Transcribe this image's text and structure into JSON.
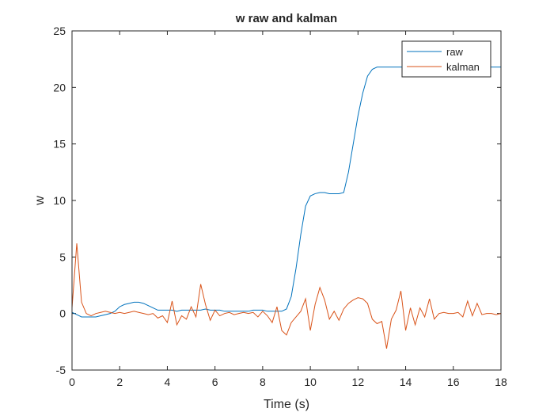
{
  "chart_data": {
    "type": "line",
    "title": "w raw and kalman",
    "xlabel": "Time (s)",
    "ylabel": "w",
    "x": [
      0,
      0.2,
      0.4,
      0.6,
      0.8,
      1,
      1.2,
      1.4,
      1.6,
      1.8,
      2,
      2.2,
      2.4,
      2.6,
      2.8,
      3,
      3.2,
      3.4,
      3.6,
      3.8,
      4,
      4.2,
      4.4,
      4.6,
      4.8,
      5,
      5.2,
      5.4,
      5.6,
      5.8,
      6,
      6.2,
      6.4,
      6.6,
      6.8,
      7,
      7.2,
      7.4,
      7.6,
      7.8,
      8,
      8.2,
      8.4,
      8.6,
      8.8,
      9,
      9.2,
      9.4,
      9.6,
      9.8,
      10,
      10.2,
      10.4,
      10.6,
      10.8,
      11,
      11.2,
      11.4,
      11.6,
      11.8,
      12,
      12.2,
      12.4,
      12.6,
      12.8,
      13,
      13.2,
      13.4,
      13.6,
      13.8,
      14,
      14.2,
      14.4,
      14.6,
      14.8,
      15,
      15.2,
      15.4,
      15.6,
      15.8,
      16,
      16.2,
      16.4,
      16.6,
      16.8,
      17,
      17.2,
      17.4,
      17.6,
      17.8,
      18
    ],
    "series": [
      {
        "name": "raw",
        "color": "#0072BD",
        "values": [
          0.1,
          -0.1,
          -0.3,
          -0.3,
          -0.3,
          -0.3,
          -0.2,
          -0.1,
          0.0,
          0.2,
          0.6,
          0.8,
          0.9,
          1.0,
          1.0,
          0.9,
          0.7,
          0.5,
          0.3,
          0.3,
          0.3,
          0.3,
          0.2,
          0.3,
          0.3,
          0.3,
          0.3,
          0.3,
          0.4,
          0.3,
          0.3,
          0.3,
          0.2,
          0.2,
          0.2,
          0.2,
          0.2,
          0.2,
          0.3,
          0.3,
          0.3,
          0.2,
          0.2,
          0.2,
          0.2,
          0.4,
          1.5,
          4.0,
          7.0,
          9.5,
          10.4,
          10.6,
          10.7,
          10.7,
          10.6,
          10.6,
          10.6,
          10.7,
          12.5,
          15.0,
          17.5,
          19.5,
          21.0,
          21.6,
          21.8,
          21.8,
          21.8,
          21.8,
          21.8,
          21.8,
          21.8,
          21.8,
          21.8,
          21.8,
          21.8,
          21.8,
          21.8,
          21.8,
          21.8,
          21.8,
          21.8,
          21.8,
          21.8,
          21.8,
          21.8,
          21.8,
          21.8,
          21.8,
          21.8,
          21.8,
          21.8
        ]
      },
      {
        "name": "kalman",
        "color": "#D95319",
        "values": [
          0.5,
          6.2,
          1.0,
          0.0,
          -0.2,
          0.0,
          0.1,
          0.2,
          0.1,
          0.0,
          0.1,
          0.0,
          0.1,
          0.2,
          0.1,
          0.0,
          -0.1,
          0.0,
          -0.4,
          -0.2,
          -0.8,
          1.1,
          -1.0,
          -0.2,
          -0.5,
          0.6,
          -0.3,
          2.6,
          0.8,
          -0.6,
          0.3,
          -0.2,
          0.0,
          0.1,
          -0.1,
          0.0,
          0.1,
          0.0,
          0.1,
          -0.3,
          0.2,
          -0.2,
          -0.8,
          0.6,
          -1.5,
          -1.9,
          -0.8,
          -0.3,
          0.2,
          1.3,
          -1.5,
          0.8,
          2.3,
          1.2,
          -0.5,
          0.2,
          -0.6,
          0.4,
          0.9,
          1.2,
          1.4,
          1.3,
          0.9,
          -0.5,
          -0.9,
          -0.7,
          -3.1,
          -0.5,
          0.3,
          2.0,
          -1.5,
          0.5,
          -1.0,
          0.5,
          -0.3,
          1.3,
          -0.5,
          0.0,
          0.1,
          0.0,
          0.0,
          0.1,
          -0.3,
          1.1,
          -0.2,
          0.9,
          -0.1,
          0.0,
          0.0,
          -0.1,
          0.0
        ]
      }
    ],
    "xlim": [
      0,
      18
    ],
    "xticks": [
      0,
      2,
      4,
      6,
      8,
      10,
      12,
      14,
      16,
      18
    ],
    "ylim": [
      -5,
      25
    ],
    "yticks": [
      -5,
      0,
      5,
      10,
      15,
      20,
      25
    ],
    "legend": "northeast",
    "grid": false
  }
}
